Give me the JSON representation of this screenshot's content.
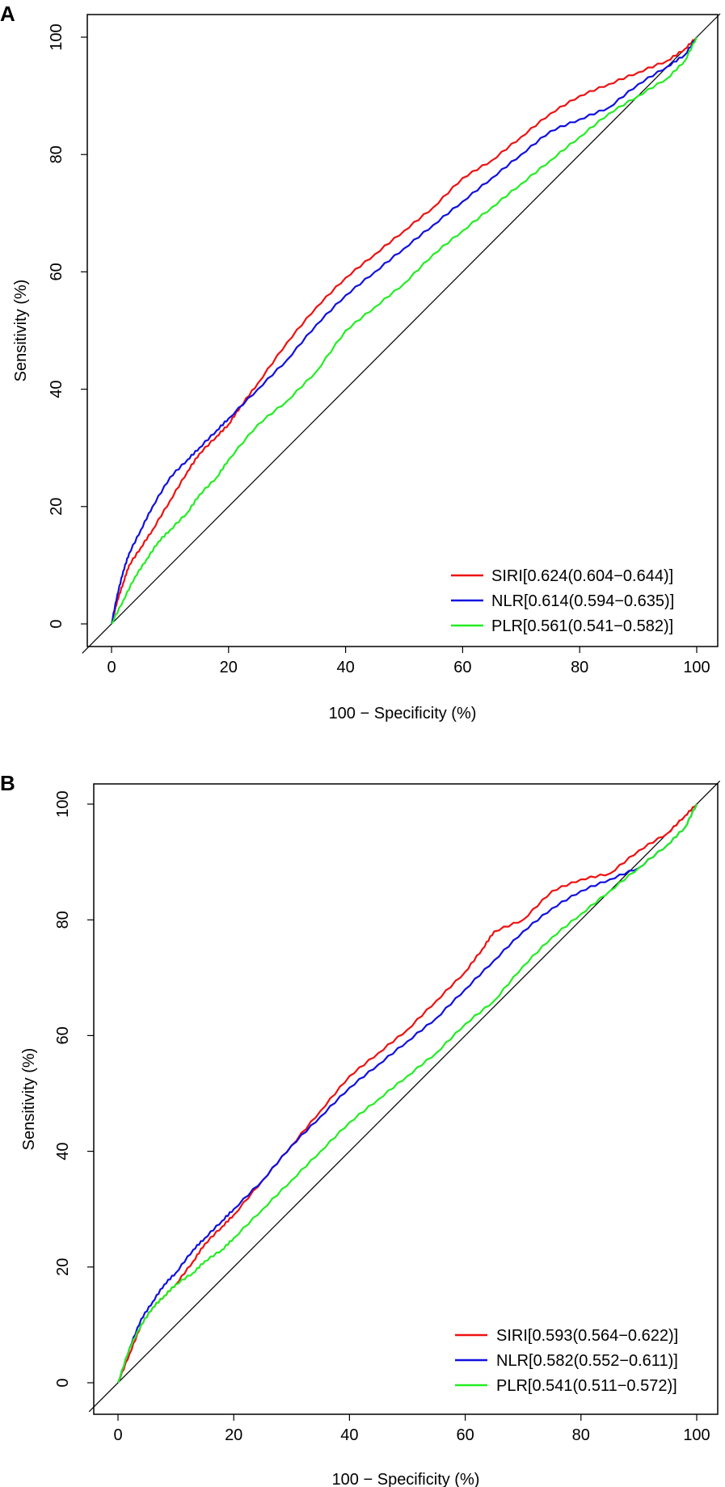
{
  "figure": {
    "panels": [
      "A",
      "B"
    ]
  },
  "chart_data": [
    {
      "panel": "A",
      "type": "line",
      "xlabel": "100 − Specificity (%)",
      "ylabel": "Sensitivity (%)",
      "xlim": [
        0,
        100
      ],
      "ylim": [
        0,
        100
      ],
      "xticks": [
        0,
        20,
        40,
        60,
        80,
        100
      ],
      "yticks": [
        0,
        20,
        40,
        60,
        80,
        100
      ],
      "xtick_labels": [
        "0",
        "20",
        "40",
        "60",
        "80",
        "100"
      ],
      "ytick_labels": [
        "0",
        "20",
        "40",
        "60",
        "80",
        "100"
      ],
      "legend_position": "bottom-right",
      "reference_line": {
        "from": [
          0,
          0
        ],
        "to": [
          100,
          100
        ],
        "color": "#000000"
      },
      "series": [
        {
          "name": "SIRI",
          "label": "SIRI[0.624(0.604−0.644)]",
          "color": "#ee1111",
          "x": [
            0,
            1,
            2,
            3,
            5,
            7,
            10,
            13,
            15,
            18,
            20,
            22,
            25,
            30,
            35,
            40,
            45,
            50,
            55,
            60,
            65,
            70,
            75,
            80,
            85,
            90,
            95,
            98,
            100
          ],
          "y": [
            0,
            4,
            7,
            10,
            13,
            16,
            21,
            26,
            29,
            32,
            34,
            37,
            41,
            48,
            54,
            59,
            63,
            67,
            71,
            76,
            79,
            83,
            87,
            90,
            92,
            94,
            96,
            98,
            100
          ]
        },
        {
          "name": "NLR",
          "label": "NLR[0.614(0.594−0.635)]",
          "color": "#1010e0",
          "x": [
            0,
            1,
            2,
            3,
            5,
            7,
            10,
            13,
            15,
            18,
            20,
            25,
            30,
            35,
            40,
            45,
            50,
            55,
            60,
            65,
            70,
            75,
            80,
            85,
            90,
            95,
            98,
            100
          ],
          "y": [
            0,
            5,
            9,
            12,
            16,
            20,
            25,
            28,
            30,
            33,
            35,
            40,
            45,
            51,
            56,
            60,
            64,
            68,
            72,
            76,
            80,
            84,
            86,
            88,
            92,
            95,
            97,
            100
          ]
        },
        {
          "name": "PLR",
          "label": "PLR[0.561(0.541−0.582)]",
          "color": "#22ee22",
          "x": [
            0,
            2,
            4,
            6,
            8,
            10,
            13,
            15,
            18,
            20,
            25,
            30,
            35,
            40,
            45,
            50,
            55,
            60,
            65,
            70,
            75,
            80,
            85,
            90,
            95,
            98,
            100
          ],
          "y": [
            0,
            4,
            8,
            11,
            14,
            16,
            19,
            22,
            25,
            28,
            34,
            38,
            43,
            50,
            54,
            58,
            63,
            67,
            71,
            75,
            79,
            83,
            87,
            90,
            93,
            96,
            100
          ]
        }
      ]
    },
    {
      "panel": "B",
      "type": "line",
      "xlabel": "100 − Specificity (%)",
      "ylabel": "Sensitivity (%)",
      "xlim": [
        0,
        100
      ],
      "ylim": [
        0,
        100
      ],
      "xticks": [
        0,
        20,
        40,
        60,
        80,
        100
      ],
      "yticks": [
        0,
        20,
        40,
        60,
        80,
        100
      ],
      "xtick_labels": [
        "0",
        "20",
        "40",
        "60",
        "80",
        "100"
      ],
      "ytick_labels": [
        "0",
        "20",
        "40",
        "60",
        "80",
        "100"
      ],
      "legend_position": "bottom-right",
      "reference_line": {
        "from": [
          0,
          0
        ],
        "to": [
          100,
          100
        ],
        "color": "#000000"
      },
      "series": [
        {
          "name": "SIRI",
          "label": "SIRI[0.593(0.564−0.622)]",
          "color": "#ee1111",
          "x": [
            0,
            2,
            4,
            6,
            8,
            10,
            13,
            15,
            18,
            20,
            25,
            30,
            35,
            40,
            45,
            50,
            55,
            60,
            63,
            65,
            70,
            75,
            80,
            85,
            90,
            95,
            98,
            100
          ],
          "y": [
            0,
            5,
            10,
            13,
            15,
            17,
            21,
            24,
            27,
            29,
            35,
            41,
            47,
            53,
            57,
            61,
            66,
            71,
            75,
            78,
            80,
            85,
            87,
            88,
            92,
            95,
            98,
            100
          ]
        },
        {
          "name": "NLR",
          "label": "NLR[0.582(0.552−0.611)]",
          "color": "#1010e0",
          "x": [
            0,
            2,
            4,
            6,
            8,
            10,
            13,
            15,
            18,
            20,
            25,
            30,
            35,
            40,
            45,
            50,
            55,
            60,
            65,
            70,
            75,
            80,
            85,
            90,
            95,
            98,
            100
          ],
          "y": [
            0,
            6,
            11,
            14,
            17,
            19,
            23,
            25,
            28,
            30,
            35,
            41,
            46,
            51,
            55,
            59,
            63,
            68,
            73,
            78,
            82,
            85,
            87,
            89,
            93,
            96,
            100
          ]
        },
        {
          "name": "PLR",
          "label": "PLR[0.541(0.511−0.572)]",
          "color": "#22ee22",
          "x": [
            0,
            2,
            4,
            6,
            8,
            10,
            13,
            15,
            18,
            20,
            25,
            30,
            35,
            40,
            45,
            50,
            55,
            60,
            65,
            70,
            75,
            80,
            85,
            90,
            95,
            98,
            100
          ],
          "y": [
            0,
            6,
            10,
            13,
            15,
            17,
            19,
            21,
            23,
            25,
            30,
            35,
            40,
            45,
            49,
            53,
            57,
            62,
            66,
            72,
            77,
            81,
            85,
            89,
            93,
            96,
            100
          ]
        }
      ]
    }
  ]
}
